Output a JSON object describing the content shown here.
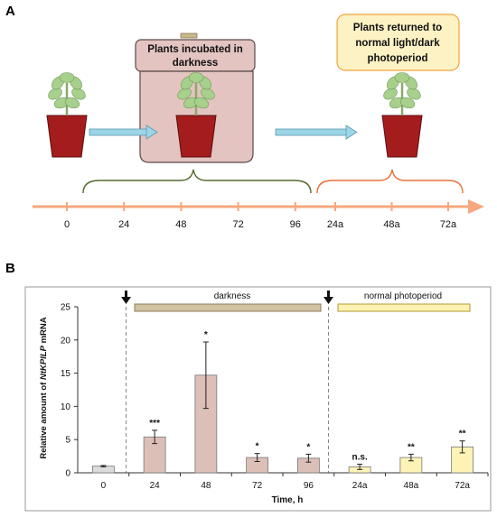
{
  "panel_a": {
    "label": "A",
    "dark_box_label": [
      "Plants incubated in",
      "darkness"
    ],
    "return_box_label": [
      "Plants returned to",
      "normal light/dark",
      "photoperiod"
    ],
    "timeline_ticks": [
      "0",
      "24",
      "48",
      "72",
      "96",
      "24a",
      "48a",
      "72a"
    ],
    "colors": {
      "pot": "#a51c1c",
      "leaf": "#a7d08c",
      "stem": "#8aa86a",
      "dark_box": "#e3c4c0",
      "return_box": "#fdf2c4",
      "return_border": "#f2a23b",
      "timeline": "#f6a77e",
      "arrow": "#9dd4e8",
      "brace_left": "#556b2f",
      "brace_right": "#e8703a"
    }
  },
  "panel_b": {
    "label": "B",
    "bands": [
      {
        "label": "darkness",
        "color": "#d2c2a4",
        "border": "#8a7d5a"
      },
      {
        "label": "normal photoperiod",
        "color": "#fdf1b4",
        "border": "#b49a2a"
      }
    ],
    "marker_icons": [
      "down-arrow-icon",
      "down-arrow-icon"
    ]
  },
  "chart_data": {
    "type": "bar",
    "categories": [
      "0",
      "24",
      "48",
      "72",
      "96",
      "24a",
      "48a",
      "72a"
    ],
    "values": [
      1.0,
      5.4,
      14.7,
      2.3,
      2.2,
      0.9,
      2.3,
      3.9
    ],
    "errors": [
      0.1,
      1.0,
      5.0,
      0.6,
      0.6,
      0.4,
      0.5,
      0.9
    ],
    "significance": [
      "",
      "***",
      "*",
      "*",
      "*",
      "n.s.",
      "**",
      "**"
    ],
    "bar_colors": [
      "#dcdcdc",
      "#dcc0b8",
      "#dcc0b8",
      "#dcc0b8",
      "#dcc0b8",
      "#fdf3b6",
      "#fdf3b6",
      "#fdf3b6"
    ],
    "ylabel": [
      "Relative amount of ",
      "NtKPILP",
      " mRNA"
    ],
    "xlabel": "Time, h",
    "ylim": [
      0,
      25
    ],
    "yticks": [
      0,
      5,
      10,
      15,
      20,
      25
    ],
    "grid": false
  }
}
